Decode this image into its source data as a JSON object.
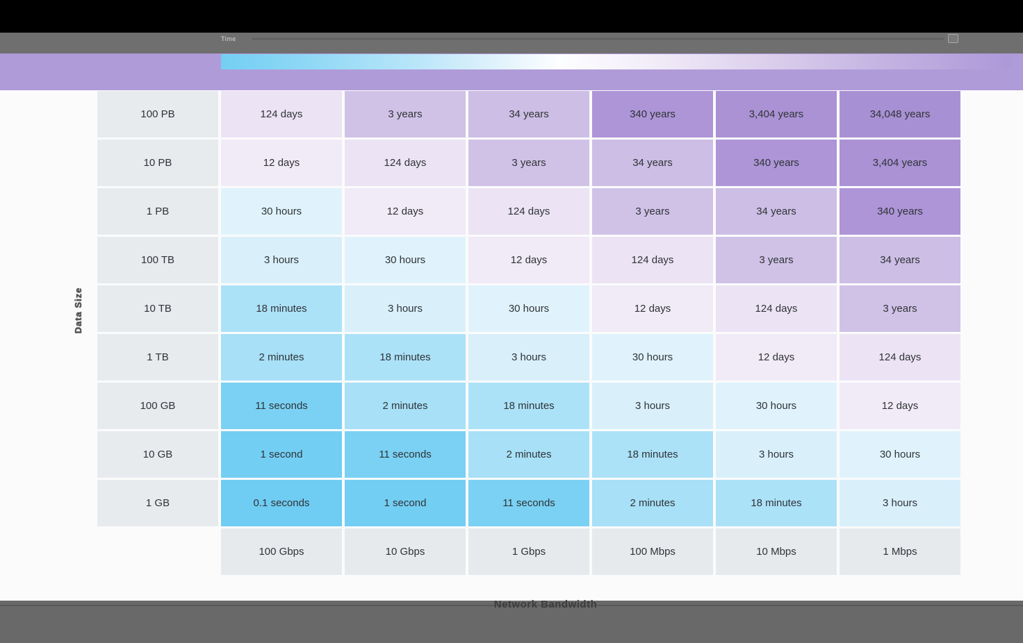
{
  "toolbar": {
    "legend_title": "Time"
  },
  "legend": {
    "gradient_stops": [
      "#73cff3 0%",
      "#8fd8f5 11%",
      "#b7e5f9 24%",
      "#ddf1fb 34%",
      "#fdfeff 43%",
      "#f3eef9 54%",
      "#e0d5ef 66%",
      "#c8b8e4 81%",
      "#ad98d8 100%"
    ]
  },
  "chart_data": {
    "type": "heatmap",
    "title": "",
    "xlabel": "Network Bandwidth",
    "ylabel": "Data Size",
    "x_categories": [
      "100 Gbps",
      "10 Gbps",
      "1 Gbps",
      "100 Mbps",
      "10 Mbps",
      "1 Mbps"
    ],
    "y_categories": [
      "100 PB",
      "10 PB",
      "1 PB",
      "100 TB",
      "10 TB",
      "1 TB",
      "100 GB",
      "10 GB",
      "1 GB"
    ],
    "cells": [
      [
        "124 days",
        "3 years",
        "34 years",
        "340 years",
        "3,404 years",
        "34,048 years"
      ],
      [
        "12 days",
        "124 days",
        "3 years",
        "34 years",
        "340 years",
        "3,404 years"
      ],
      [
        "30 hours",
        "12 days",
        "124 days",
        "3 years",
        "34 years",
        "340 years"
      ],
      [
        "3 hours",
        "30 hours",
        "12 days",
        "124 days",
        "3 years",
        "34 years"
      ],
      [
        "18 minutes",
        "3 hours",
        "30 hours",
        "12 days",
        "124 days",
        "3 years"
      ],
      [
        "2 minutes",
        "18 minutes",
        "3 hours",
        "30 hours",
        "12 days",
        "124 days"
      ],
      [
        "11 seconds",
        "2 minutes",
        "18 minutes",
        "3 hours",
        "30 hours",
        "12 days"
      ],
      [
        "1 second",
        "11 seconds",
        "2 minutes",
        "18 minutes",
        "3 hours",
        "30 hours"
      ],
      [
        "0.1 seconds",
        "1 second",
        "11 seconds",
        "2 minutes",
        "18 minutes",
        "3 hours"
      ]
    ],
    "value_colors": {
      "0.1 seconds": "#6fccf2",
      "1 second": "#73cef3",
      "11 seconds": "#7ad1f3",
      "2 minutes": "#a7e0f7",
      "18 minutes": "#ace2f8",
      "3 hours": "#d9f0fb",
      "30 hours": "#e0f3fc",
      "12 days": "#f1eaf7",
      "124 days": "#ece3f4",
      "3 years": "#d0c2e7",
      "34 years": "#cdbee5",
      "340 years": "#ad95d7",
      "3,404 years": "#aa92d5",
      "34,048 years": "#a890d4"
    },
    "legend_position": "top",
    "grid": false
  },
  "footer": {
    "caption": "Network Bandwidth"
  },
  "colors": {
    "titlebar": "#000000",
    "toolbar": "#6f6f6f",
    "band": "#b09bd9",
    "rowLabelBg": "#e8ebee",
    "colLabelBg": "#e7eaed",
    "footer": "#696969",
    "cellText": "#2f3337"
  }
}
